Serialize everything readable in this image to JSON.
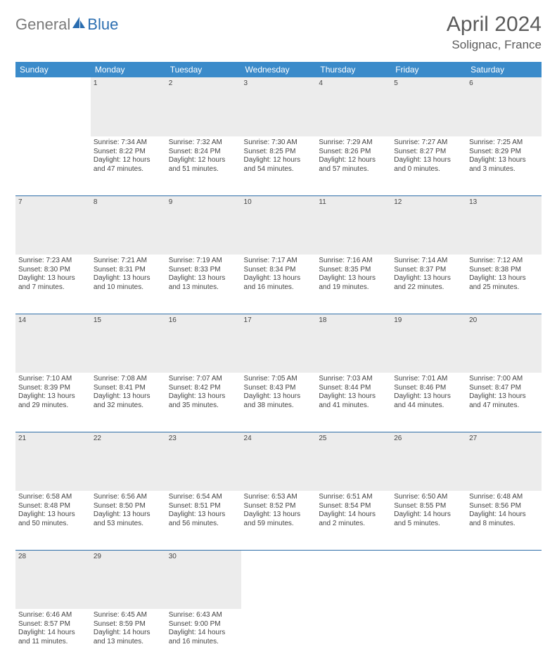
{
  "brand": {
    "part1": "General",
    "part2": "Blue"
  },
  "title": "April 2024",
  "location": "Solignac, France",
  "colors": {
    "header_bg": "#3b8bca",
    "header_text": "#ffffff",
    "daynum_bg": "#ececec",
    "daynum_text": "#6a6a6a",
    "rule": "#2e6ea8",
    "body_text": "#444444",
    "brand_gray": "#7a7a7a",
    "brand_blue": "#2a6db0",
    "title_gray": "#5b5b5b"
  },
  "days": [
    "Sunday",
    "Monday",
    "Tuesday",
    "Wednesday",
    "Thursday",
    "Friday",
    "Saturday"
  ],
  "weeks": [
    [
      null,
      {
        "n": "1",
        "sr": "Sunrise: 7:34 AM",
        "ss": "Sunset: 8:22 PM",
        "d1": "Daylight: 12 hours",
        "d2": "and 47 minutes."
      },
      {
        "n": "2",
        "sr": "Sunrise: 7:32 AM",
        "ss": "Sunset: 8:24 PM",
        "d1": "Daylight: 12 hours",
        "d2": "and 51 minutes."
      },
      {
        "n": "3",
        "sr": "Sunrise: 7:30 AM",
        "ss": "Sunset: 8:25 PM",
        "d1": "Daylight: 12 hours",
        "d2": "and 54 minutes."
      },
      {
        "n": "4",
        "sr": "Sunrise: 7:29 AM",
        "ss": "Sunset: 8:26 PM",
        "d1": "Daylight: 12 hours",
        "d2": "and 57 minutes."
      },
      {
        "n": "5",
        "sr": "Sunrise: 7:27 AM",
        "ss": "Sunset: 8:27 PM",
        "d1": "Daylight: 13 hours",
        "d2": "and 0 minutes."
      },
      {
        "n": "6",
        "sr": "Sunrise: 7:25 AM",
        "ss": "Sunset: 8:29 PM",
        "d1": "Daylight: 13 hours",
        "d2": "and 3 minutes."
      }
    ],
    [
      {
        "n": "7",
        "sr": "Sunrise: 7:23 AM",
        "ss": "Sunset: 8:30 PM",
        "d1": "Daylight: 13 hours",
        "d2": "and 7 minutes."
      },
      {
        "n": "8",
        "sr": "Sunrise: 7:21 AM",
        "ss": "Sunset: 8:31 PM",
        "d1": "Daylight: 13 hours",
        "d2": "and 10 minutes."
      },
      {
        "n": "9",
        "sr": "Sunrise: 7:19 AM",
        "ss": "Sunset: 8:33 PM",
        "d1": "Daylight: 13 hours",
        "d2": "and 13 minutes."
      },
      {
        "n": "10",
        "sr": "Sunrise: 7:17 AM",
        "ss": "Sunset: 8:34 PM",
        "d1": "Daylight: 13 hours",
        "d2": "and 16 minutes."
      },
      {
        "n": "11",
        "sr": "Sunrise: 7:16 AM",
        "ss": "Sunset: 8:35 PM",
        "d1": "Daylight: 13 hours",
        "d2": "and 19 minutes."
      },
      {
        "n": "12",
        "sr": "Sunrise: 7:14 AM",
        "ss": "Sunset: 8:37 PM",
        "d1": "Daylight: 13 hours",
        "d2": "and 22 minutes."
      },
      {
        "n": "13",
        "sr": "Sunrise: 7:12 AM",
        "ss": "Sunset: 8:38 PM",
        "d1": "Daylight: 13 hours",
        "d2": "and 25 minutes."
      }
    ],
    [
      {
        "n": "14",
        "sr": "Sunrise: 7:10 AM",
        "ss": "Sunset: 8:39 PM",
        "d1": "Daylight: 13 hours",
        "d2": "and 29 minutes."
      },
      {
        "n": "15",
        "sr": "Sunrise: 7:08 AM",
        "ss": "Sunset: 8:41 PM",
        "d1": "Daylight: 13 hours",
        "d2": "and 32 minutes."
      },
      {
        "n": "16",
        "sr": "Sunrise: 7:07 AM",
        "ss": "Sunset: 8:42 PM",
        "d1": "Daylight: 13 hours",
        "d2": "and 35 minutes."
      },
      {
        "n": "17",
        "sr": "Sunrise: 7:05 AM",
        "ss": "Sunset: 8:43 PM",
        "d1": "Daylight: 13 hours",
        "d2": "and 38 minutes."
      },
      {
        "n": "18",
        "sr": "Sunrise: 7:03 AM",
        "ss": "Sunset: 8:44 PM",
        "d1": "Daylight: 13 hours",
        "d2": "and 41 minutes."
      },
      {
        "n": "19",
        "sr": "Sunrise: 7:01 AM",
        "ss": "Sunset: 8:46 PM",
        "d1": "Daylight: 13 hours",
        "d2": "and 44 minutes."
      },
      {
        "n": "20",
        "sr": "Sunrise: 7:00 AM",
        "ss": "Sunset: 8:47 PM",
        "d1": "Daylight: 13 hours",
        "d2": "and 47 minutes."
      }
    ],
    [
      {
        "n": "21",
        "sr": "Sunrise: 6:58 AM",
        "ss": "Sunset: 8:48 PM",
        "d1": "Daylight: 13 hours",
        "d2": "and 50 minutes."
      },
      {
        "n": "22",
        "sr": "Sunrise: 6:56 AM",
        "ss": "Sunset: 8:50 PM",
        "d1": "Daylight: 13 hours",
        "d2": "and 53 minutes."
      },
      {
        "n": "23",
        "sr": "Sunrise: 6:54 AM",
        "ss": "Sunset: 8:51 PM",
        "d1": "Daylight: 13 hours",
        "d2": "and 56 minutes."
      },
      {
        "n": "24",
        "sr": "Sunrise: 6:53 AM",
        "ss": "Sunset: 8:52 PM",
        "d1": "Daylight: 13 hours",
        "d2": "and 59 minutes."
      },
      {
        "n": "25",
        "sr": "Sunrise: 6:51 AM",
        "ss": "Sunset: 8:54 PM",
        "d1": "Daylight: 14 hours",
        "d2": "and 2 minutes."
      },
      {
        "n": "26",
        "sr": "Sunrise: 6:50 AM",
        "ss": "Sunset: 8:55 PM",
        "d1": "Daylight: 14 hours",
        "d2": "and 5 minutes."
      },
      {
        "n": "27",
        "sr": "Sunrise: 6:48 AM",
        "ss": "Sunset: 8:56 PM",
        "d1": "Daylight: 14 hours",
        "d2": "and 8 minutes."
      }
    ],
    [
      {
        "n": "28",
        "sr": "Sunrise: 6:46 AM",
        "ss": "Sunset: 8:57 PM",
        "d1": "Daylight: 14 hours",
        "d2": "and 11 minutes."
      },
      {
        "n": "29",
        "sr": "Sunrise: 6:45 AM",
        "ss": "Sunset: 8:59 PM",
        "d1": "Daylight: 14 hours",
        "d2": "and 13 minutes."
      },
      {
        "n": "30",
        "sr": "Sunrise: 6:43 AM",
        "ss": "Sunset: 9:00 PM",
        "d1": "Daylight: 14 hours",
        "d2": "and 16 minutes."
      },
      null,
      null,
      null,
      null
    ]
  ]
}
